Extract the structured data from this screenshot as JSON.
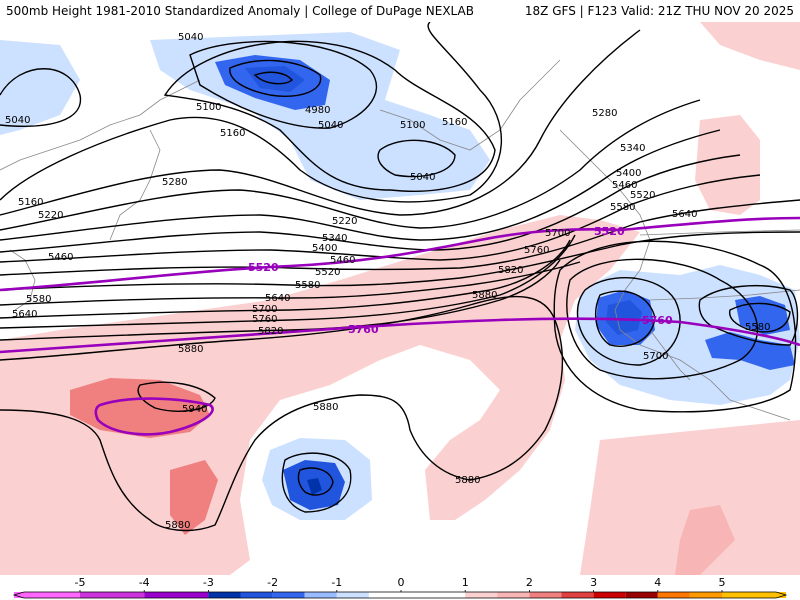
{
  "header": {
    "left_title": "500mb Height 1981-2010 Standardized Anomaly | College of DuPage NEXLAB",
    "right_title": "18Z GFS | F123 Valid: 21Z THU NOV 20 2025"
  },
  "colors": {
    "neg5": "#ff66ff",
    "neg4": "#9900cc",
    "neg3": "#0033aa",
    "neg2": "#3366ee",
    "neg15": "#7799f5",
    "neg1": "#cce0ff",
    "pos1": "#fbd0d0",
    "pos2": "#f08080",
    "pos3": "#cc0000",
    "pos4": "#ff9900",
    "pos5": "#ffc000",
    "highlight_contour": "#9900bb",
    "contour": "#000000",
    "coast": "#888888"
  },
  "map_labels": {
    "c5040_a": "5040",
    "c5040_b": "5040",
    "c5040_c": "5040",
    "c5040_d": "5040",
    "c4980": "4980",
    "c5100_a": "5100",
    "c5100_b": "5100",
    "c5160_a": "5160",
    "c5160_b": "5160",
    "c5160_c": "5160",
    "c5220_a": "5220",
    "c5220_b": "5220",
    "c5280_a": "5280",
    "c5280_b": "5280",
    "c5340_a": "5340",
    "c5340_b": "5340",
    "c5400_a": "5400",
    "c5400_b": "5400",
    "c5460_a": "5460",
    "c5460_b": "5460",
    "c5460_c": "5460",
    "c5520_a": "5520",
    "c5520_b": "5520",
    "c5580_a": "5580",
    "c5580_b": "5580",
    "c5580_c": "5580",
    "c5580_d": "5580",
    "c5640_a": "5640",
    "c5640_b": "5640",
    "c5640_c": "5640",
    "c5700_a": "5700",
    "c5700_b": "5700",
    "c5700_c": "5700",
    "c5760_a": "5760",
    "c5760_b": "5760",
    "c5820_a": "5820",
    "c5820_b": "5820",
    "c5880_a": "5880",
    "c5880_b": "5880",
    "c5880_c": "5880",
    "c5880_d": "5880",
    "c5880_e": "5880",
    "c5940": "5940",
    "hl5520_a": "5520",
    "hl5520_b": "5520",
    "hl5760_a": "5760",
    "hl5760_b": "5760"
  },
  "colorbar": {
    "ticks": [
      {
        "label": "-5",
        "value": -5
      },
      {
        "label": "-4",
        "value": -4
      },
      {
        "label": "-3",
        "value": -3
      },
      {
        "label": "-2",
        "value": -2
      },
      {
        "label": "-1",
        "value": -1
      },
      {
        "label": "0",
        "value": 0
      },
      {
        "label": "1",
        "value": 1
      },
      {
        "label": "2",
        "value": 2
      },
      {
        "label": "3",
        "value": 3
      },
      {
        "label": "4",
        "value": 4
      },
      {
        "label": "5",
        "value": 5
      }
    ],
    "bins": [
      {
        "from": -6,
        "to": -5,
        "color": "#ff66ff"
      },
      {
        "from": -5,
        "to": -4,
        "color": "#cc33dd"
      },
      {
        "from": -4,
        "to": -3,
        "color": "#9900cc"
      },
      {
        "from": -3,
        "to": -2.5,
        "color": "#0033aa"
      },
      {
        "from": -2.5,
        "to": -2,
        "color": "#2255dd"
      },
      {
        "from": -2,
        "to": -1.5,
        "color": "#3366ee"
      },
      {
        "from": -1.5,
        "to": -1,
        "color": "#99bbff"
      },
      {
        "from": -1,
        "to": -0.5,
        "color": "#cce0ff"
      },
      {
        "from": -0.5,
        "to": 0.5,
        "color": "#ffffff"
      },
      {
        "from": 0.5,
        "to": 1,
        "color": "#ffffff"
      },
      {
        "from": 1,
        "to": 1.5,
        "color": "#fbd0d0"
      },
      {
        "from": 1.5,
        "to": 2,
        "color": "#f7b5b5"
      },
      {
        "from": 2,
        "to": 2.5,
        "color": "#f08080"
      },
      {
        "from": 2.5,
        "to": 3,
        "color": "#e04040"
      },
      {
        "from": 3,
        "to": 3.5,
        "color": "#cc0000"
      },
      {
        "from": 3.5,
        "to": 4,
        "color": "#990000"
      },
      {
        "from": 4,
        "to": 4.5,
        "color": "#ff7700"
      },
      {
        "from": 4.5,
        "to": 5,
        "color": "#ff9900"
      },
      {
        "from": 5,
        "to": 6,
        "color": "#ffc000"
      }
    ]
  }
}
